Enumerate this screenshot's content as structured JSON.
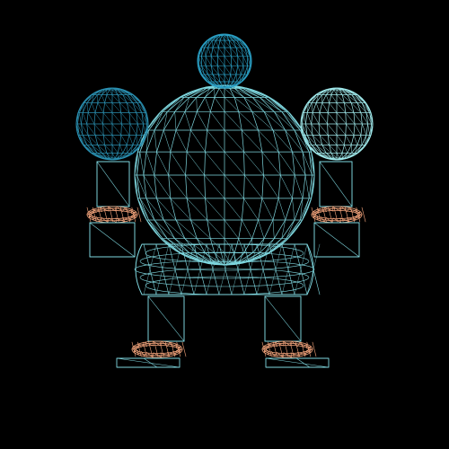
{
  "scene": {
    "background_color": "#000000",
    "render_mode": "wireframe",
    "colors": {
      "torso": "#7fd8e0",
      "head": "#2a9fc4",
      "left_hand": "#2a8fb0",
      "right_hand": "#9fe8ea",
      "limbs": "#7fd8e0",
      "joints": "#f0a27a"
    },
    "parts": [
      "head",
      "torso",
      "pelvis",
      "left-hand",
      "right-hand",
      "left-arm",
      "right-arm",
      "left-leg",
      "right-leg",
      "left-foot",
      "right-foot",
      "wrist-joints",
      "ankle-joints"
    ]
  }
}
